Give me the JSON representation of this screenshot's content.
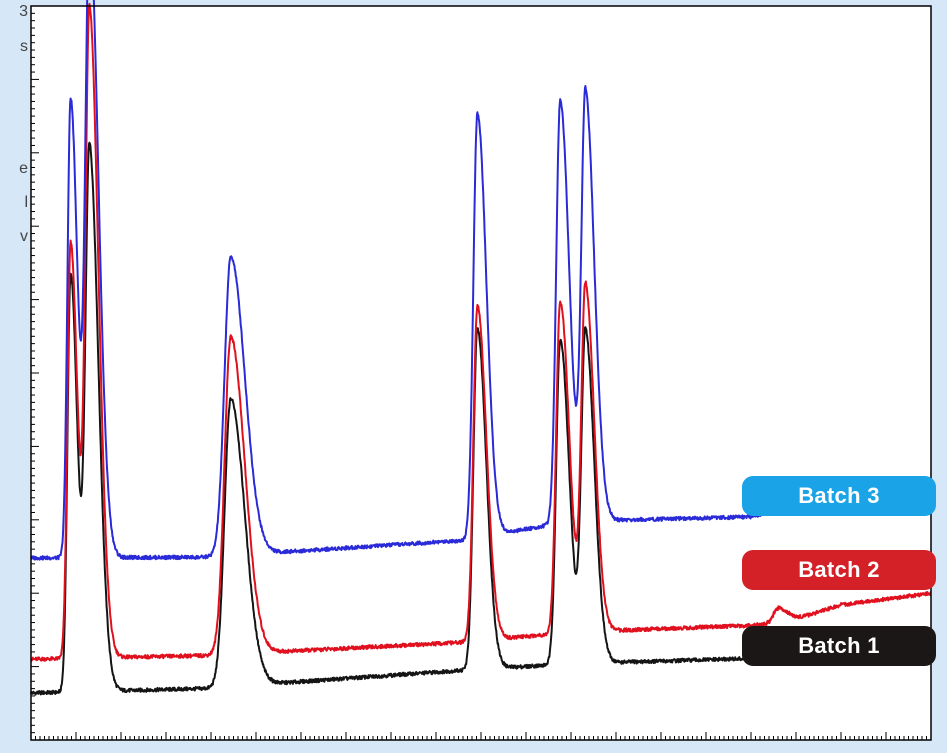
{
  "edge_text": [
    "3",
    "s",
    "e",
    "l",
    "v"
  ],
  "colors": {
    "background": "#d6e8f7",
    "plot_area": "#ffffff",
    "batch1": "#141414",
    "batch2": "#e0101e",
    "batch3": "#2a2ad8",
    "pill_batch1": "#1b1716",
    "pill_batch2": "#d42127",
    "pill_batch3": "#1aa3e6"
  },
  "chart_data": {
    "type": "line",
    "title": "",
    "xlabel": "",
    "ylabel": "",
    "xlim": [
      0,
      100
    ],
    "ylim": [
      0,
      100
    ],
    "grid": false,
    "legend_position": "right",
    "series": [
      {
        "name": "Batch 1",
        "color": "#141414",
        "baseline": [
          [
            0,
            6.4
          ],
          [
            19,
            7.0
          ],
          [
            48,
            9.5
          ],
          [
            60,
            10.4
          ],
          [
            80,
            11.1
          ],
          [
            83,
            12.0
          ],
          [
            100,
            12.5
          ]
        ],
        "peaks": [
          {
            "x": 4.4,
            "height": 57.0,
            "width": 0.35
          },
          {
            "x": 6.5,
            "height": 73.6,
            "width": 0.45
          },
          {
            "x": 22.2,
            "height": 39.2,
            "width": 0.7
          },
          {
            "x": 49.6,
            "height": 46.4,
            "width": 0.45
          },
          {
            "x": 58.8,
            "height": 44.2,
            "width": 0.45
          },
          {
            "x": 61.6,
            "height": 45.0,
            "width": 0.45
          }
        ]
      },
      {
        "name": "Batch 2",
        "color": "#e0101e",
        "baseline": [
          [
            0,
            11.0
          ],
          [
            19,
            11.5
          ],
          [
            48,
            13.3
          ],
          [
            60,
            14.7
          ],
          [
            80,
            15.6
          ],
          [
            84,
            16.1
          ],
          [
            90,
            18.4
          ],
          [
            100,
            20.0
          ]
        ],
        "peaks": [
          {
            "x": 4.4,
            "height": 56.7,
            "width": 0.35
          },
          {
            "x": 6.5,
            "height": 87.8,
            "width": 0.45
          },
          {
            "x": 22.2,
            "height": 43.2,
            "width": 0.7
          },
          {
            "x": 49.6,
            "height": 45.6,
            "width": 0.45
          },
          {
            "x": 58.8,
            "height": 45.2,
            "width": 0.45
          },
          {
            "x": 61.6,
            "height": 46.9,
            "width": 0.45
          },
          {
            "x": 83.0,
            "height": 2.0,
            "width": 0.5
          }
        ]
      },
      {
        "name": "Batch 3",
        "color": "#2a2ad8",
        "baseline": [
          [
            0,
            24.8
          ],
          [
            19,
            24.9
          ],
          [
            48,
            27.2
          ],
          [
            60,
            29.8
          ],
          [
            80,
            30.4
          ],
          [
            83,
            31.4
          ],
          [
            90,
            32.5
          ]
        ],
        "peaks": [
          {
            "x": 4.4,
            "height": 62.6,
            "width": 0.35
          },
          {
            "x": 6.5,
            "height": 85.2,
            "width": 0.45
          },
          {
            "x": 22.2,
            "height": 40.7,
            "width": 0.7
          },
          {
            "x": 49.6,
            "height": 57.8,
            "width": 0.45
          },
          {
            "x": 58.8,
            "height": 57.6,
            "width": 0.45
          },
          {
            "x": 61.6,
            "height": 58.1,
            "width": 0.45
          }
        ]
      }
    ]
  },
  "legend": [
    {
      "label": "Batch 3",
      "color": "#1aa3e6"
    },
    {
      "label": "Batch 2",
      "color": "#d42127"
    },
    {
      "label": "Batch 1",
      "color": "#1b1716"
    }
  ]
}
